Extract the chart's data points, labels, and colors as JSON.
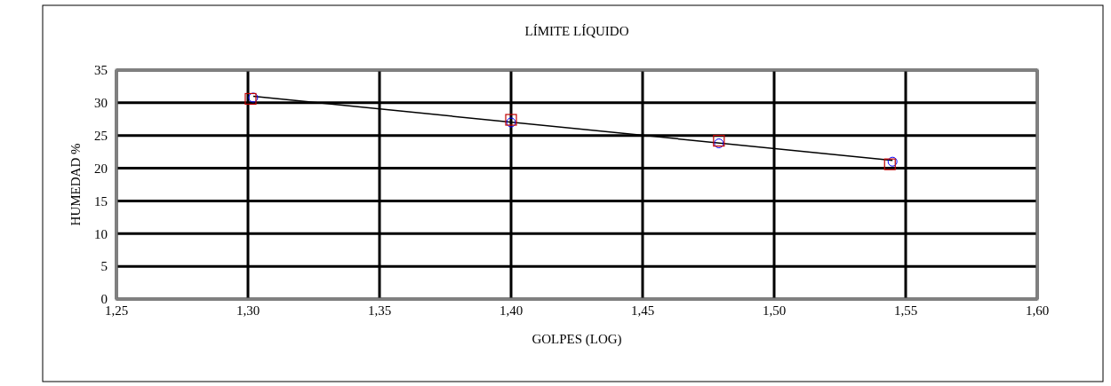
{
  "chart_data": {
    "type": "scatter",
    "title": "LÍMITE  LÍQUIDO",
    "xlabel": "GOLPES (LOG)",
    "ylabel": "HUMEDAD %",
    "xlim": [
      1.25,
      1.6
    ],
    "xticks": [
      {
        "value": 1.25,
        "label": "1,25"
      },
      {
        "value": 1.3,
        "label": "1,30"
      },
      {
        "value": 1.35,
        "label": "1,35"
      },
      {
        "value": 1.4,
        "label": "1,40"
      },
      {
        "value": 1.45,
        "label": "1,45"
      },
      {
        "value": 1.5,
        "label": "1,50"
      },
      {
        "value": 1.55,
        "label": "1,55"
      },
      {
        "value": 1.6,
        "label": "1,60"
      }
    ],
    "ylim": [
      0,
      35
    ],
    "yticks": [
      0,
      5,
      10,
      15,
      20,
      25,
      30,
      35
    ],
    "grid": true,
    "series": [
      {
        "type": "line",
        "color": "#000000",
        "marker": "none",
        "line_style": "solid",
        "x": [
          1.302,
          1.545
        ],
        "values": [
          31.0,
          21.2
        ]
      },
      {
        "color": "#0000ff",
        "marker": "circle",
        "x": [
          1.302,
          1.4,
          1.479,
          1.545
        ],
        "values": [
          30.8,
          27.0,
          23.8,
          21.0
        ]
      },
      {
        "color": "#c00000",
        "marker": "square",
        "x": [
          1.301,
          1.4,
          1.479,
          1.544
        ],
        "values": [
          30.6,
          27.4,
          24.2,
          20.6
        ]
      }
    ]
  }
}
